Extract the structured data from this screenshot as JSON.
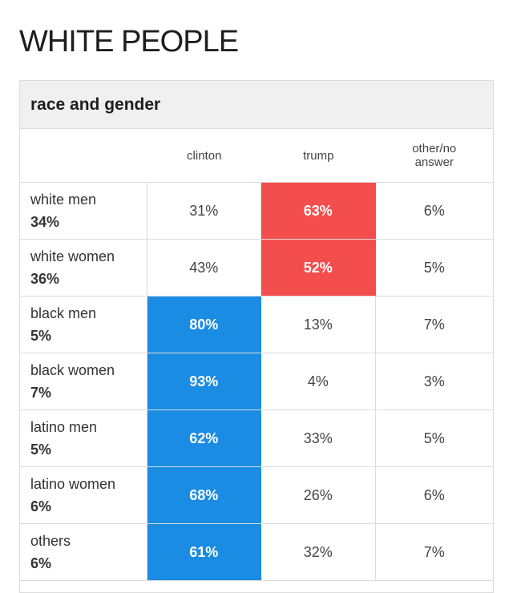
{
  "page_title": "WHITE PEOPLE",
  "card": {
    "header": "race and gender",
    "columns": [
      "clinton",
      "trump",
      "other/no\nanswer"
    ],
    "colors": {
      "clinton": "#1b8ce3",
      "trump": "#f44d4d"
    },
    "rows": [
      {
        "group": "white men",
        "share": "34%",
        "clinton": "31%",
        "trump": "63%",
        "other": "6%",
        "winner": "trump"
      },
      {
        "group": "white women",
        "share": "36%",
        "clinton": "43%",
        "trump": "52%",
        "other": "5%",
        "winner": "trump"
      },
      {
        "group": "black men",
        "share": "5%",
        "clinton": "80%",
        "trump": "13%",
        "other": "7%",
        "winner": "clinton"
      },
      {
        "group": "black women",
        "share": "7%",
        "clinton": "93%",
        "trump": "4%",
        "other": "3%",
        "winner": "clinton"
      },
      {
        "group": "latino men",
        "share": "5%",
        "clinton": "62%",
        "trump": "33%",
        "other": "5%",
        "winner": "clinton"
      },
      {
        "group": "latino women",
        "share": "6%",
        "clinton": "68%",
        "trump": "26%",
        "other": "6%",
        "winner": "clinton"
      },
      {
        "group": "others",
        "share": "6%",
        "clinton": "61%",
        "trump": "32%",
        "other": "7%",
        "winner": "clinton"
      }
    ]
  }
}
